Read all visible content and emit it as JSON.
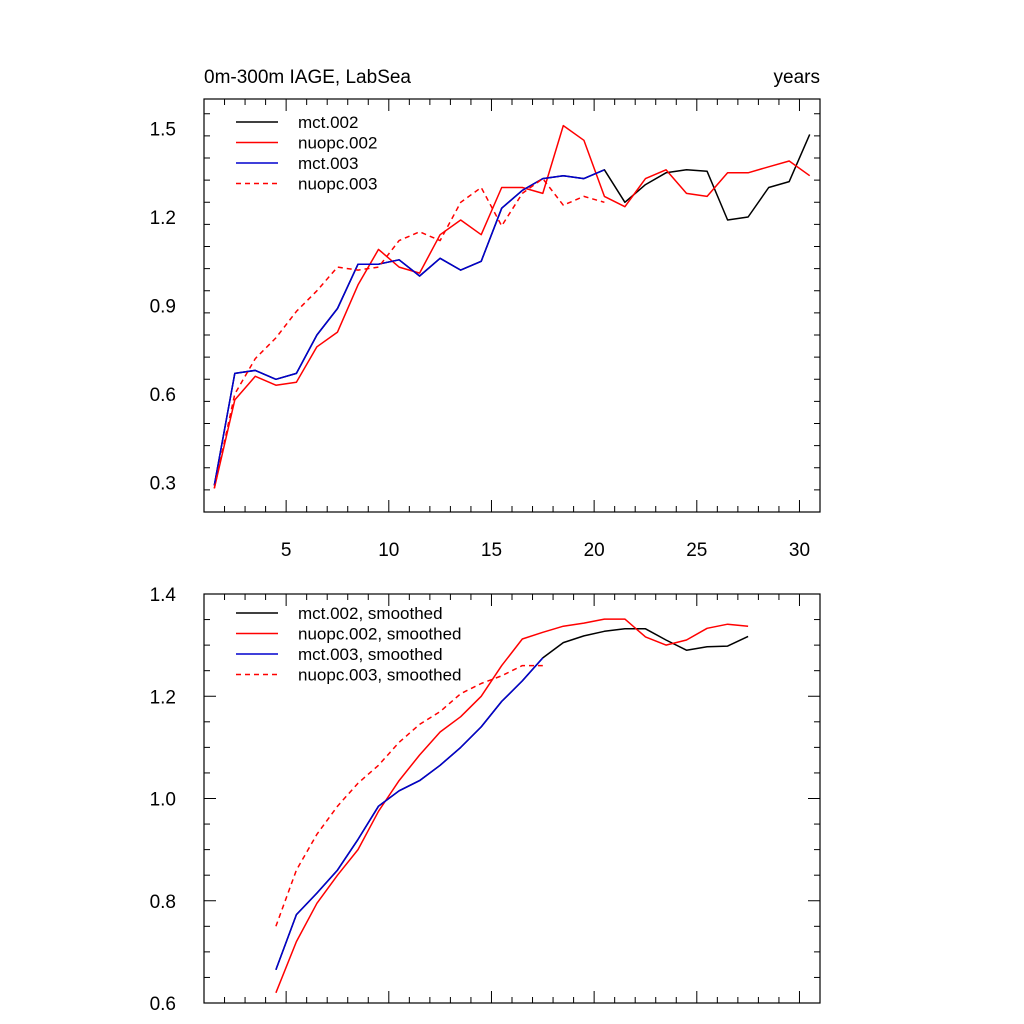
{
  "colors": {
    "black": "#000000",
    "red": "#ff0000",
    "blue": "#0000cd"
  },
  "chart_data": [
    {
      "type": "line",
      "title": "0m-300m IAGE, LabSea",
      "right_title": "years",
      "xlim": [
        1,
        31
      ],
      "ylim": [
        0.2,
        1.6
      ],
      "xticks": [
        5,
        10,
        15,
        20,
        25,
        30
      ],
      "xticklabels": [
        "5",
        "10",
        "15",
        "20",
        "25",
        "30"
      ],
      "yticks": [
        0.3,
        0.6,
        0.9,
        1.2,
        1.5
      ],
      "yticklabels": [
        "0.3",
        "0.6",
        "0.9",
        "1.2",
        "1.5"
      ],
      "legend_position": "top-left",
      "series": [
        {
          "name": "mct.002",
          "color": "#000000",
          "dash": "solid",
          "x": [
            1.5,
            2.5,
            3.5,
            4.5,
            5.5,
            6.5,
            7.5,
            8.5,
            9.5,
            10.5,
            11.5,
            12.5,
            13.5,
            14.5,
            15.5,
            16.5,
            17.5,
            18.5,
            19.5,
            20.5,
            21.5,
            22.5,
            23.5,
            24.5,
            25.5,
            26.5,
            27.5,
            28.5,
            29.5,
            30.5
          ],
          "values": [
            0.29,
            0.67,
            0.68,
            0.65,
            0.67,
            0.8,
            0.89,
            1.04,
            1.04,
            1.055,
            1.0,
            1.06,
            1.02,
            1.05,
            1.23,
            1.29,
            1.33,
            1.34,
            1.33,
            1.36,
            1.25,
            1.31,
            1.35,
            1.36,
            1.355,
            1.19,
            1.2,
            1.3,
            1.32,
            1.48
          ]
        },
        {
          "name": "nuopc.002",
          "color": "#ff0000",
          "dash": "solid",
          "x": [
            1.5,
            2.5,
            3.5,
            4.5,
            5.5,
            6.5,
            7.5,
            8.5,
            9.5,
            10.5,
            11.5,
            12.5,
            13.5,
            14.5,
            15.5,
            16.5,
            17.5,
            18.5,
            19.5,
            20.5,
            21.5,
            22.5,
            23.5,
            24.5,
            25.5,
            26.5,
            27.5,
            28.5,
            29.5,
            30.5
          ],
          "values": [
            0.28,
            0.58,
            0.66,
            0.63,
            0.64,
            0.76,
            0.81,
            0.97,
            1.09,
            1.03,
            1.01,
            1.14,
            1.19,
            1.14,
            1.3,
            1.3,
            1.28,
            1.51,
            1.46,
            1.27,
            1.235,
            1.33,
            1.36,
            1.28,
            1.27,
            1.35,
            1.35,
            1.37,
            1.39,
            1.34
          ]
        },
        {
          "name": "mct.003",
          "color": "#0000cd",
          "dash": "solid",
          "x": [
            1.5,
            2.5,
            3.5,
            4.5,
            5.5,
            6.5,
            7.5,
            8.5,
            9.5,
            10.5,
            11.5,
            12.5,
            13.5,
            14.5,
            15.5,
            16.5,
            17.5,
            18.5,
            19.5,
            20.5
          ],
          "values": [
            0.29,
            0.67,
            0.68,
            0.65,
            0.67,
            0.8,
            0.89,
            1.04,
            1.04,
            1.055,
            1.0,
            1.06,
            1.02,
            1.05,
            1.23,
            1.29,
            1.33,
            1.34,
            1.33,
            1.36
          ]
        },
        {
          "name": "nuopc.003",
          "color": "#ff0000",
          "dash": "dashed",
          "x": [
            1.5,
            2.5,
            3.5,
            4.5,
            5.5,
            6.5,
            7.5,
            8.5,
            9.5,
            10.5,
            11.5,
            12.5,
            13.5,
            14.5,
            15.5,
            16.5,
            17.5,
            18.5,
            19.5,
            20.5
          ],
          "values": [
            0.28,
            0.6,
            0.72,
            0.79,
            0.88,
            0.95,
            1.03,
            1.02,
            1.03,
            1.12,
            1.15,
            1.12,
            1.25,
            1.3,
            1.17,
            1.28,
            1.33,
            1.24,
            1.27,
            1.25
          ]
        }
      ]
    },
    {
      "type": "line",
      "xlim": [
        1,
        31
      ],
      "ylim": [
        0.6,
        1.4
      ],
      "xticks": [
        5,
        10,
        15,
        20,
        25,
        30
      ],
      "yticks": [
        0.6,
        0.8,
        1.0,
        1.2,
        1.4
      ],
      "yticklabels": [
        "0.6",
        "0.8",
        "1.0",
        "1.2",
        "1.4"
      ],
      "legend_position": "top-left",
      "series": [
        {
          "name": "mct.002, smoothed",
          "color": "#000000",
          "dash": "solid",
          "x": [
            4.5,
            5.5,
            6.5,
            7.5,
            8.5,
            9.5,
            10.5,
            11.5,
            12.5,
            13.5,
            14.5,
            15.5,
            16.5,
            17.5,
            18.5,
            19.5,
            20.5,
            21.5,
            22.5,
            23.5,
            24.5,
            25.5,
            26.5,
            27.5
          ],
          "values": [
            0.665,
            0.773,
            0.815,
            0.86,
            0.92,
            0.985,
            1.015,
            1.035,
            1.065,
            1.1,
            1.14,
            1.19,
            1.23,
            1.275,
            1.305,
            1.318,
            1.327,
            1.332,
            1.332,
            1.31,
            1.29,
            1.297,
            1.298,
            1.317
          ]
        },
        {
          "name": "nuopc.002, smoothed",
          "color": "#ff0000",
          "dash": "solid",
          "x": [
            4.5,
            5.5,
            6.5,
            7.5,
            8.5,
            9.5,
            10.5,
            11.5,
            12.5,
            13.5,
            14.5,
            15.5,
            16.5,
            17.5,
            18.5,
            19.5,
            20.5,
            21.5,
            22.5,
            23.5,
            24.5,
            25.5,
            26.5,
            27.5
          ],
          "values": [
            0.62,
            0.72,
            0.795,
            0.85,
            0.9,
            0.975,
            1.035,
            1.085,
            1.13,
            1.16,
            1.2,
            1.26,
            1.312,
            1.325,
            1.337,
            1.343,
            1.351,
            1.351,
            1.316,
            1.3,
            1.31,
            1.333,
            1.341,
            1.337
          ]
        },
        {
          "name": "mct.003, smoothed",
          "color": "#0000cd",
          "dash": "solid",
          "x": [
            4.5,
            5.5,
            6.5,
            7.5,
            8.5,
            9.5,
            10.5,
            11.5,
            12.5,
            13.5,
            14.5,
            15.5,
            16.5,
            17.5
          ],
          "values": [
            0.665,
            0.773,
            0.815,
            0.86,
            0.92,
            0.985,
            1.015,
            1.035,
            1.065,
            1.1,
            1.14,
            1.19,
            1.23,
            1.275
          ]
        },
        {
          "name": "nuopc.003, smoothed",
          "color": "#ff0000",
          "dash": "dashed",
          "x": [
            4.5,
            5.5,
            6.5,
            7.5,
            8.5,
            9.5,
            10.5,
            11.5,
            12.5,
            13.5,
            14.5,
            15.5,
            16.5,
            17.5
          ],
          "values": [
            0.75,
            0.86,
            0.93,
            0.985,
            1.03,
            1.065,
            1.11,
            1.145,
            1.17,
            1.205,
            1.225,
            1.24,
            1.26,
            1.26
          ]
        }
      ]
    }
  ]
}
